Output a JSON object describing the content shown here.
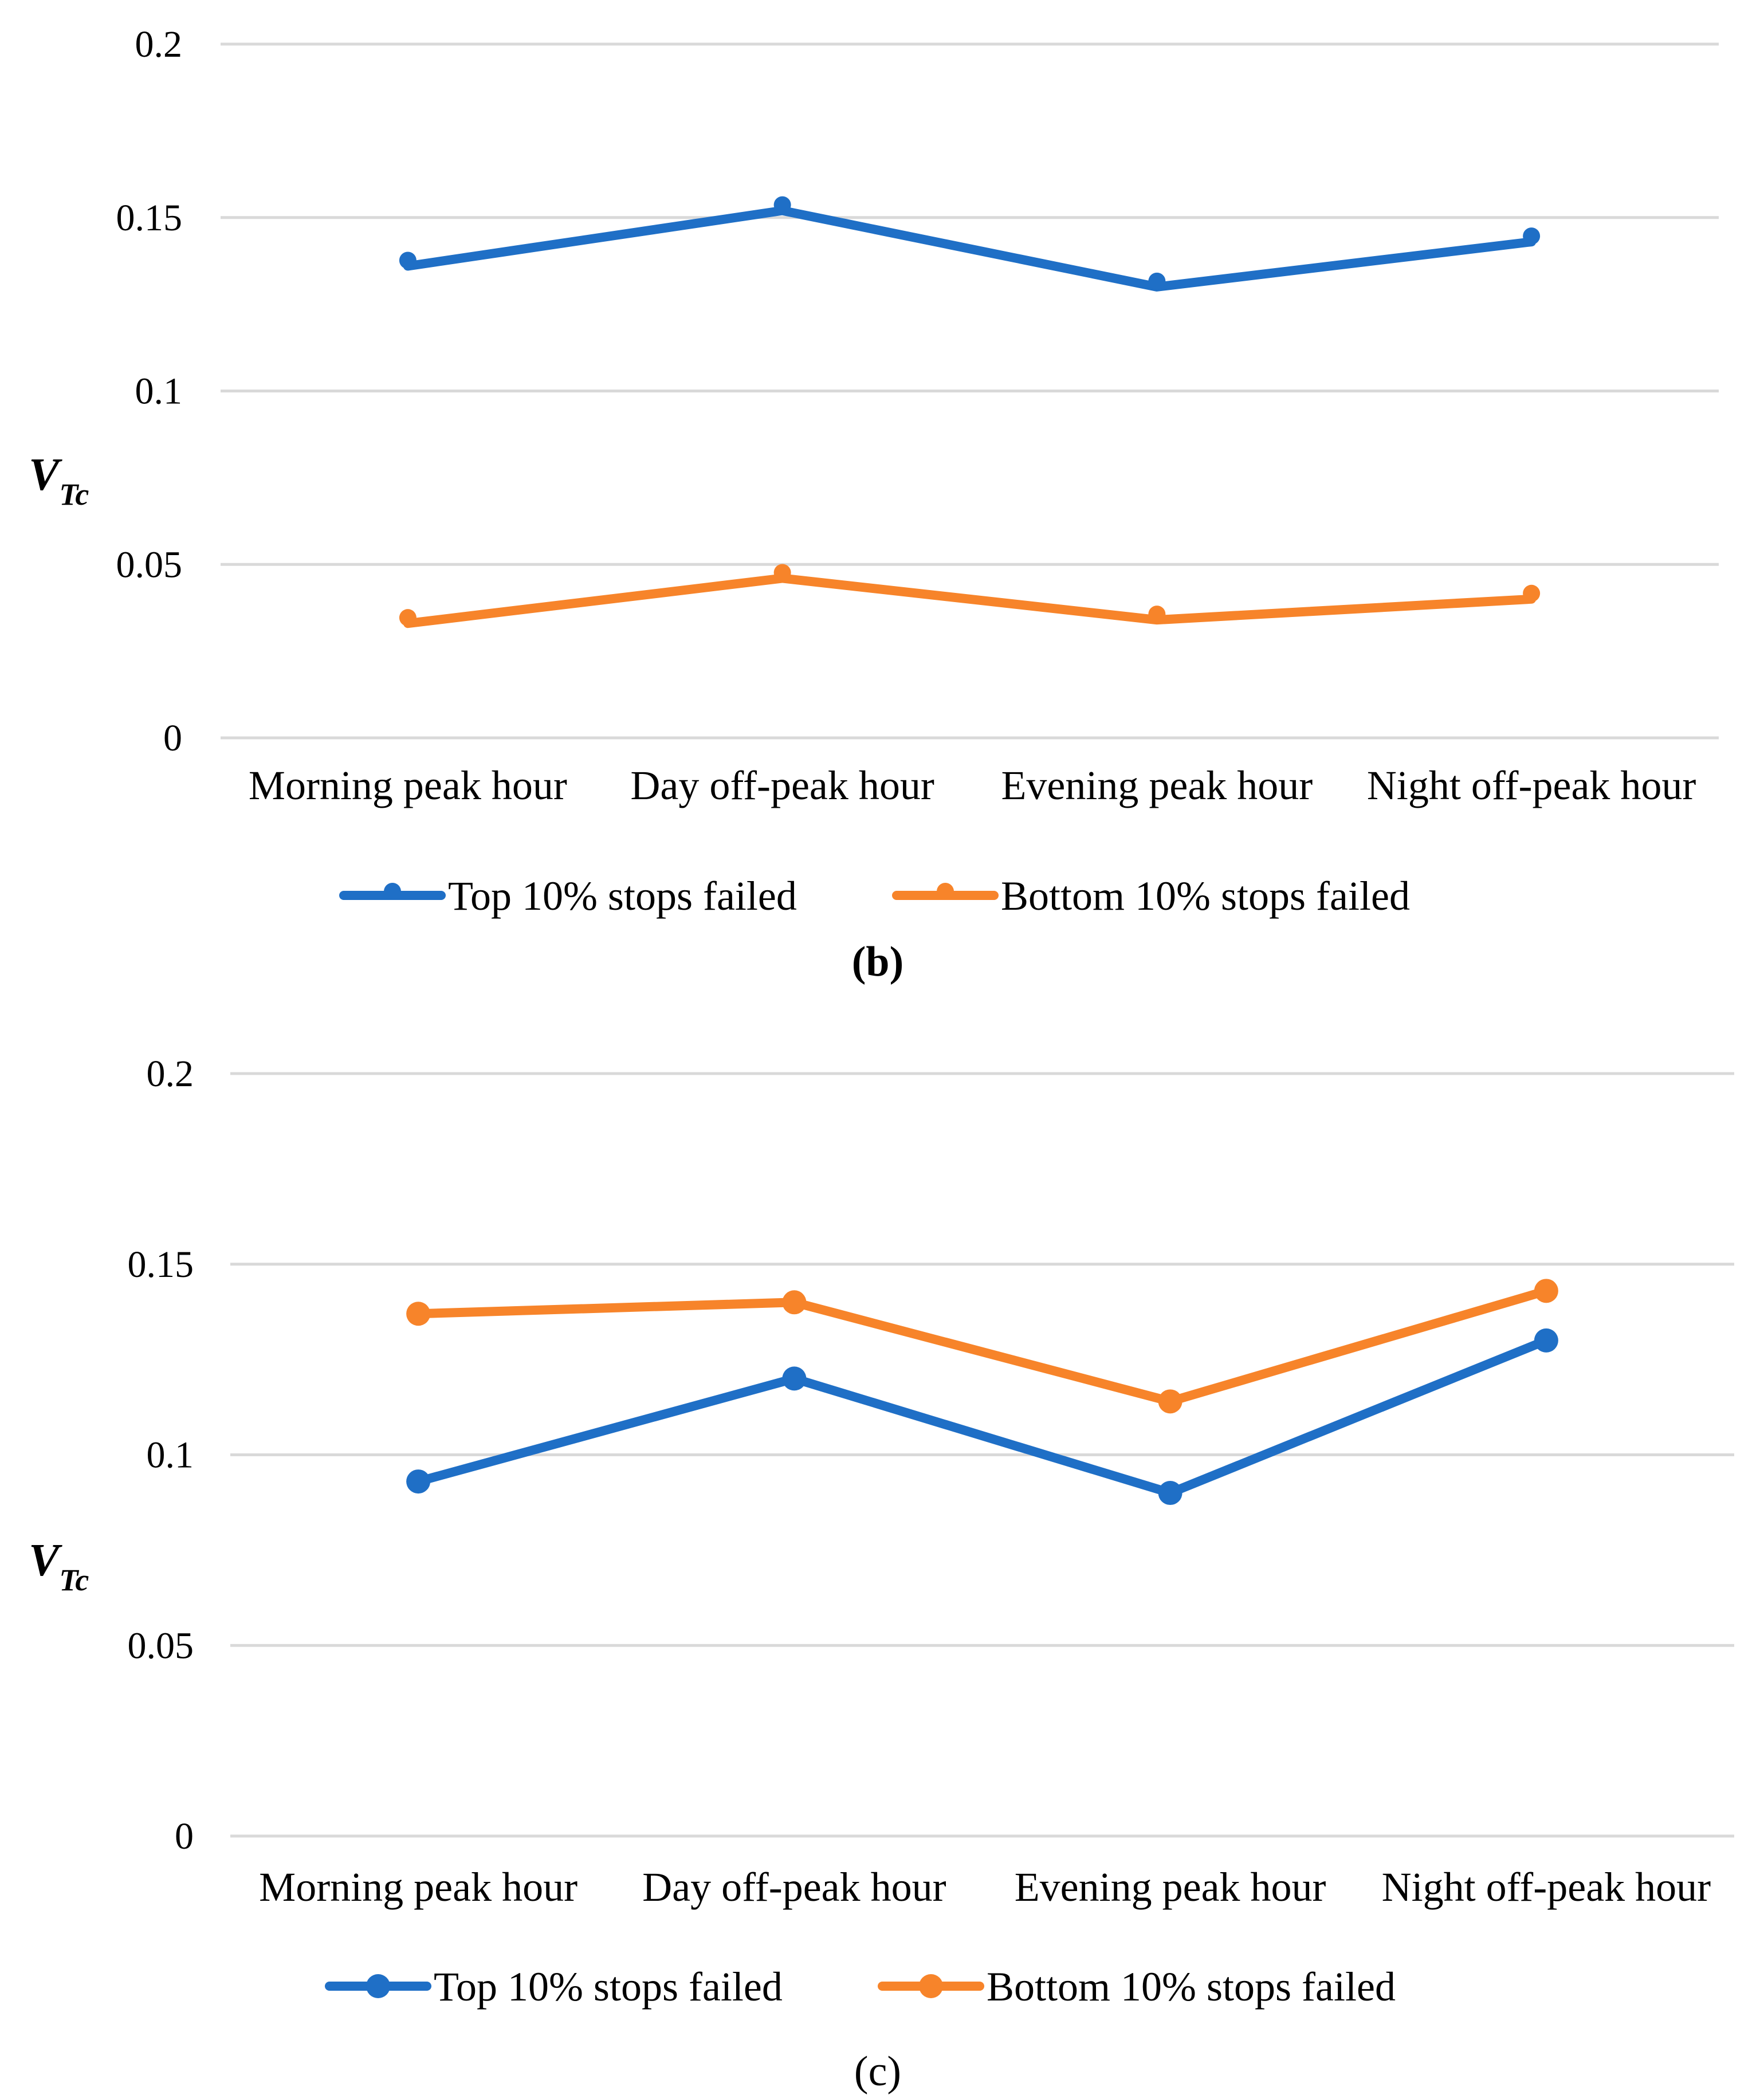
{
  "chart_data": [
    {
      "panel_label": "(b)",
      "type": "line",
      "categories": [
        "Morning peak hour",
        "Day off-peak hour",
        "Evening peak hour",
        "Night off-peak hour"
      ],
      "series": [
        {
          "name": "Top 10% stops failed",
          "color": "#1f6fc6",
          "values": [
            0.136,
            0.152,
            0.13,
            0.143
          ]
        },
        {
          "name": "Bottom 10% stops failed",
          "color": "#f7842a",
          "values": [
            0.033,
            0.046,
            0.034,
            0.04
          ]
        }
      ],
      "ylabel_main": "V",
      "ylabel_sub": "Tc",
      "ylim": [
        0,
        0.2
      ],
      "yticks": [
        0,
        0.05,
        0.1,
        0.15,
        0.2
      ],
      "ytick_labels": [
        "0",
        "0.05",
        "0.1",
        "0.15",
        "0.2"
      ],
      "grid": true,
      "legend": "bottom"
    },
    {
      "panel_label": "(c)",
      "type": "line",
      "categories": [
        "Morning peak hour",
        "Day off-peak hour",
        "Evening peak hour",
        "Night off-peak hour"
      ],
      "series": [
        {
          "name": "Top 10% stops failed",
          "color": "#1f6fc6",
          "values": [
            0.093,
            0.12,
            0.09,
            0.13
          ]
        },
        {
          "name": "Bottom 10% stops failed",
          "color": "#f7842a",
          "values": [
            0.137,
            0.14,
            0.114,
            0.143
          ]
        }
      ],
      "ylabel_main": "V",
      "ylabel_sub": "Tc",
      "ylim": [
        0,
        0.2
      ],
      "yticks": [
        0,
        0.05,
        0.1,
        0.15,
        0.2
      ],
      "ytick_labels": [
        "0",
        "0.05",
        "0.1",
        "0.15",
        "0.2"
      ],
      "grid": true,
      "legend": "bottom"
    }
  ]
}
